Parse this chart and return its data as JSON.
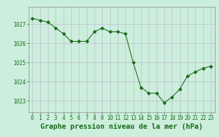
{
  "x": [
    0,
    1,
    2,
    3,
    4,
    5,
    6,
    7,
    8,
    9,
    10,
    11,
    12,
    13,
    14,
    15,
    16,
    17,
    18,
    19,
    20,
    21,
    22,
    23
  ],
  "y": [
    1027.3,
    1027.2,
    1027.1,
    1026.8,
    1026.5,
    1026.1,
    1026.1,
    1026.1,
    1026.6,
    1026.8,
    1026.6,
    1026.6,
    1026.5,
    1025.0,
    1023.7,
    1023.4,
    1023.4,
    1022.9,
    1023.2,
    1023.6,
    1024.3,
    1024.5,
    1024.7,
    1024.8
  ],
  "line_color": "#1a6b1a",
  "marker": "D",
  "marker_size": 2.5,
  "bg_color": "#cceedd",
  "grid_color_v": "#bbbbcc",
  "grid_color_h": "#bbbbcc",
  "xlabel": "Graphe pression niveau de la mer (hPa)",
  "xlabel_fontsize": 7.5,
  "tick_color": "#1a6b1a",
  "tick_fontsize": 5.5,
  "ylim": [
    1022.4,
    1027.9
  ],
  "yticks": [
    1023,
    1024,
    1025,
    1026,
    1027
  ],
  "xticks": [
    0,
    1,
    2,
    3,
    4,
    5,
    6,
    7,
    8,
    9,
    10,
    11,
    12,
    13,
    14,
    15,
    16,
    17,
    18,
    19,
    20,
    21,
    22,
    23
  ]
}
